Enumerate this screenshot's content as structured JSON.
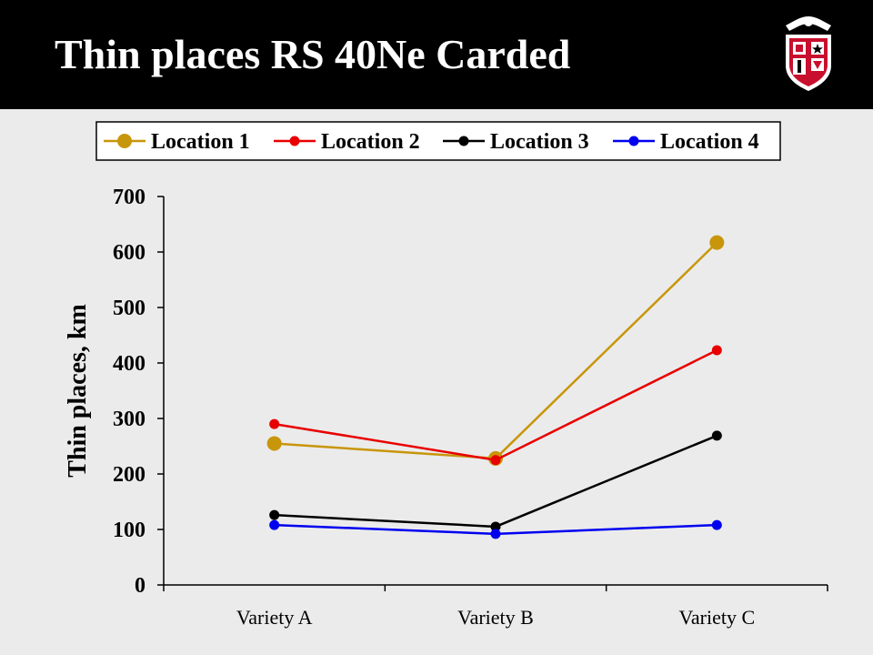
{
  "slide": {
    "title": "Thin places RS 40Ne Carded",
    "logo_icon": "university-shield-logo-icon"
  },
  "chart_data": {
    "type": "line",
    "title": "",
    "xlabel": "",
    "ylabel": "Thin places, km",
    "categories": [
      "Variety A",
      "Variety B",
      "Variety C"
    ],
    "ylim": [
      0,
      700
    ],
    "yticks": [
      0,
      100,
      200,
      300,
      400,
      500,
      600,
      700
    ],
    "grid": false,
    "legend_position": "top",
    "series": [
      {
        "name": "Location 1",
        "color": "#c8960a",
        "values": [
          255,
          228,
          617
        ]
      },
      {
        "name": "Location 2",
        "color": "#e80000",
        "values": [
          290,
          225,
          423
        ]
      },
      {
        "name": "Location 3",
        "color": "#000000",
        "values": [
          126,
          105,
          269
        ]
      },
      {
        "name": "Location 4",
        "color": "#0000f0",
        "values": [
          108,
          92,
          108
        ]
      }
    ]
  }
}
